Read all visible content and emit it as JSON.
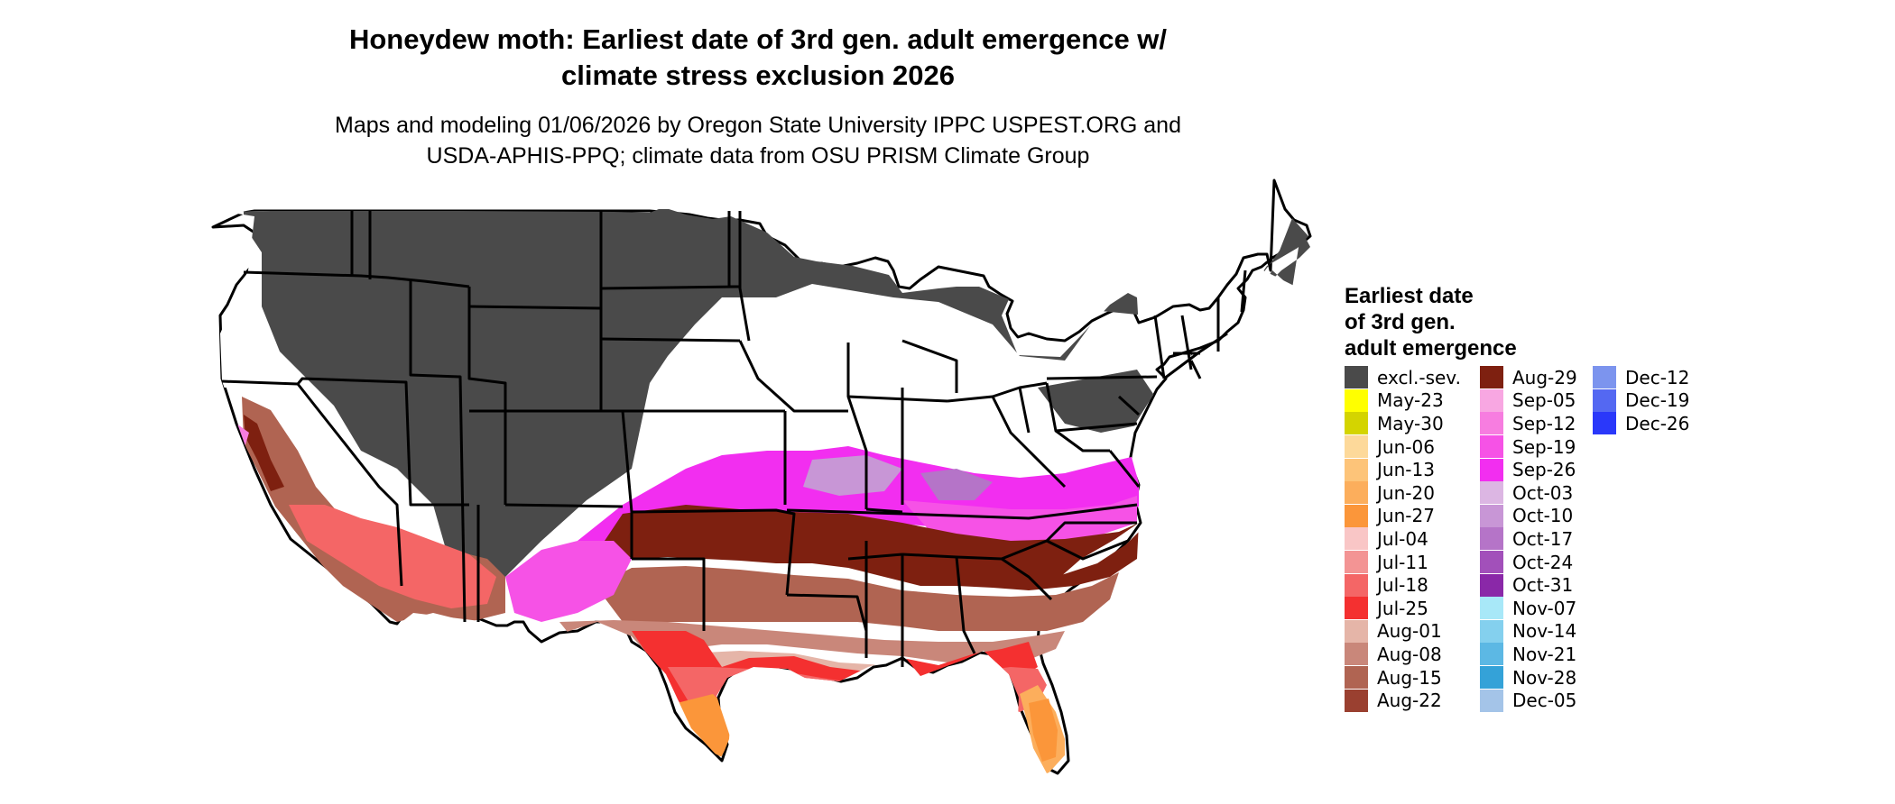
{
  "title_line1": "Honeydew moth: Earliest date of 3rd gen. adult emergence w/",
  "title_line2": "climate stress exclusion 2026",
  "subtitle_line1": "Maps and modeling 01/06/2026 by Oregon State University IPPC USPEST.ORG and",
  "subtitle_line2": "USDA-APHIS-PPQ; climate data from OSU PRISM Climate Group",
  "legend": {
    "title_line1": "Earliest date",
    "title_line2": "of 3rd gen.",
    "title_line3": "adult emergence",
    "columns": [
      [
        {
          "label": "excl.-sev.",
          "color": "#4a4a4a"
        },
        {
          "label": "May-23",
          "color": "#ffff00"
        },
        {
          "label": "May-30",
          "color": "#d4d400"
        },
        {
          "label": "Jun-06",
          "color": "#fdd99a"
        },
        {
          "label": "Jun-13",
          "color": "#fdc479"
        },
        {
          "label": "Jun-20",
          "color": "#fcae5c"
        },
        {
          "label": "Jun-27",
          "color": "#fb963a"
        },
        {
          "label": "Jul-04",
          "color": "#f9c6c6"
        },
        {
          "label": "Jul-11",
          "color": "#f39494"
        },
        {
          "label": "Jul-18",
          "color": "#f46666"
        },
        {
          "label": "Jul-25",
          "color": "#f43030"
        },
        {
          "label": "Aug-01",
          "color": "#e5b5a8"
        },
        {
          "label": "Aug-08",
          "color": "#c9877a"
        },
        {
          "label": "Aug-15",
          "color": "#b06452"
        },
        {
          "label": "Aug-22",
          "color": "#9a4030"
        }
      ],
      [
        {
          "label": "Aug-29",
          "color": "#7e2010"
        },
        {
          "label": "Sep-05",
          "color": "#f8a7e2"
        },
        {
          "label": "Sep-12",
          "color": "#f77de0"
        },
        {
          "label": "Sep-19",
          "color": "#f652e6"
        },
        {
          "label": "Sep-26",
          "color": "#f22ef0"
        },
        {
          "label": "Oct-03",
          "color": "#dcb6e3"
        },
        {
          "label": "Oct-10",
          "color": "#c896d6"
        },
        {
          "label": "Oct-17",
          "color": "#b574c8"
        },
        {
          "label": "Oct-24",
          "color": "#a250ba"
        },
        {
          "label": "Oct-31",
          "color": "#8a28a8"
        },
        {
          "label": "Nov-07",
          "color": "#a8e8f8"
        },
        {
          "label": "Nov-14",
          "color": "#84d0ee"
        },
        {
          "label": "Nov-21",
          "color": "#5cb8e4"
        },
        {
          "label": "Nov-28",
          "color": "#34a2d8"
        },
        {
          "label": "Dec-05",
          "color": "#a4c4e8"
        }
      ],
      [
        {
          "label": "Dec-12",
          "color": "#7c94ee"
        },
        {
          "label": "Dec-19",
          "color": "#5468f2"
        },
        {
          "label": "Dec-26",
          "color": "#2a38fa"
        }
      ]
    ]
  }
}
